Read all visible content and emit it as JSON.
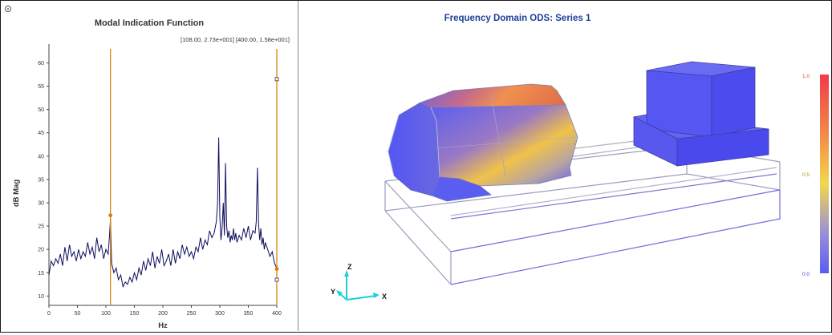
{
  "mif": {
    "title": "Modal Indication Function",
    "cursor_readout": "[108.00, 2.73e+001] [400.00, 1.58e+001]",
    "y_axis_label": "dB Mag",
    "x_axis_label": "Hz",
    "x_ticks": [
      "0",
      "50",
      "100",
      "150",
      "200",
      "250",
      "300",
      "350",
      "400"
    ],
    "y_ticks": [
      "10",
      "15",
      "20",
      "25",
      "30",
      "35",
      "40",
      "45",
      "50",
      "55",
      "60"
    ]
  },
  "ods": {
    "title": "Frequency Domain ODS: Series 1",
    "colorbar_max_label": "1.0",
    "colorbar_mid_label": "0.5",
    "colorbar_min_label": "0.0",
    "axis_z_label": "Z",
    "axis_y_label": "Y",
    "axis_x_label": "X"
  },
  "colors": {
    "trace": "#0d0d5e",
    "cursor_line": "#d4880f",
    "cursor_marker": "#e07a10",
    "mesh_base": "#5757f0",
    "accent_orange": "#f08a3c",
    "accent_yellow": "#f2d14a",
    "title_blue": "#1d3f9a"
  },
  "chart_data": {
    "type": "line",
    "title": "Modal Indication Function",
    "xlabel": "Hz",
    "ylabel": "dB Mag",
    "xlim": [
      0,
      400
    ],
    "ylim": [
      8,
      63
    ],
    "grid": false,
    "cursors": [
      {
        "x": 108.0,
        "y": 27.3
      },
      {
        "x": 400.0,
        "y": 15.8
      }
    ],
    "series": [
      {
        "x": [
          0,
          4,
          8,
          12,
          16,
          20,
          24,
          28,
          32,
          36,
          40,
          44,
          48,
          52,
          56,
          60,
          64,
          68,
          72,
          76,
          80,
          84,
          88,
          92,
          96,
          100,
          104,
          106,
          108,
          110,
          114,
          118,
          122,
          126,
          130,
          134,
          138,
          142,
          146,
          150,
          154,
          158,
          162,
          166,
          170,
          174,
          178,
          182,
          186,
          190,
          194,
          198,
          202,
          206,
          210,
          214,
          218,
          222,
          226,
          230,
          234,
          238,
          242,
          246,
          250,
          254,
          258,
          262,
          266,
          270,
          274,
          278,
          282,
          286,
          290,
          294,
          296,
          298,
          300,
          302,
          304,
          306,
          308,
          310,
          312,
          314,
          316,
          318,
          320,
          322,
          324,
          326,
          328,
          330,
          334,
          338,
          342,
          346,
          350,
          354,
          358,
          362,
          364,
          366,
          368,
          370,
          372,
          374,
          376,
          378,
          380,
          384,
          388,
          392,
          396,
          400
        ],
        "y": [
          14.5,
          17.5,
          16.5,
          18.0,
          17.0,
          19.0,
          16.5,
          20.5,
          17.5,
          21.0,
          18.5,
          19.5,
          17.5,
          20.0,
          18.0,
          19.5,
          18.5,
          21.5,
          19.0,
          20.5,
          18.0,
          22.5,
          19.5,
          21.0,
          18.0,
          20.0,
          19.0,
          22.5,
          26.5,
          17.0,
          15.0,
          16.0,
          13.5,
          14.5,
          12.0,
          13.0,
          12.5,
          14.0,
          13.0,
          15.0,
          13.5,
          16.0,
          14.5,
          17.5,
          15.5,
          18.0,
          16.5,
          19.5,
          16.0,
          18.5,
          17.0,
          20.0,
          16.5,
          17.5,
          19.0,
          16.5,
          20.0,
          17.0,
          19.5,
          18.0,
          21.0,
          19.0,
          20.5,
          18.5,
          19.5,
          18.0,
          20.5,
          19.5,
          22.5,
          20.0,
          22.0,
          21.0,
          24.0,
          22.5,
          23.5,
          26.0,
          30.0,
          44.0,
          27.0,
          22.0,
          24.5,
          30.0,
          23.0,
          38.5,
          25.0,
          22.5,
          24.0,
          21.5,
          23.0,
          22.0,
          24.5,
          22.0,
          23.5,
          21.5,
          23.0,
          22.0,
          24.5,
          22.5,
          25.0,
          22.0,
          24.0,
          23.5,
          26.0,
          37.5,
          25.5,
          22.0,
          24.5,
          21.0,
          22.5,
          20.0,
          21.5,
          20.0,
          18.5,
          19.5,
          17.0,
          16.0
        ]
      }
    ]
  }
}
